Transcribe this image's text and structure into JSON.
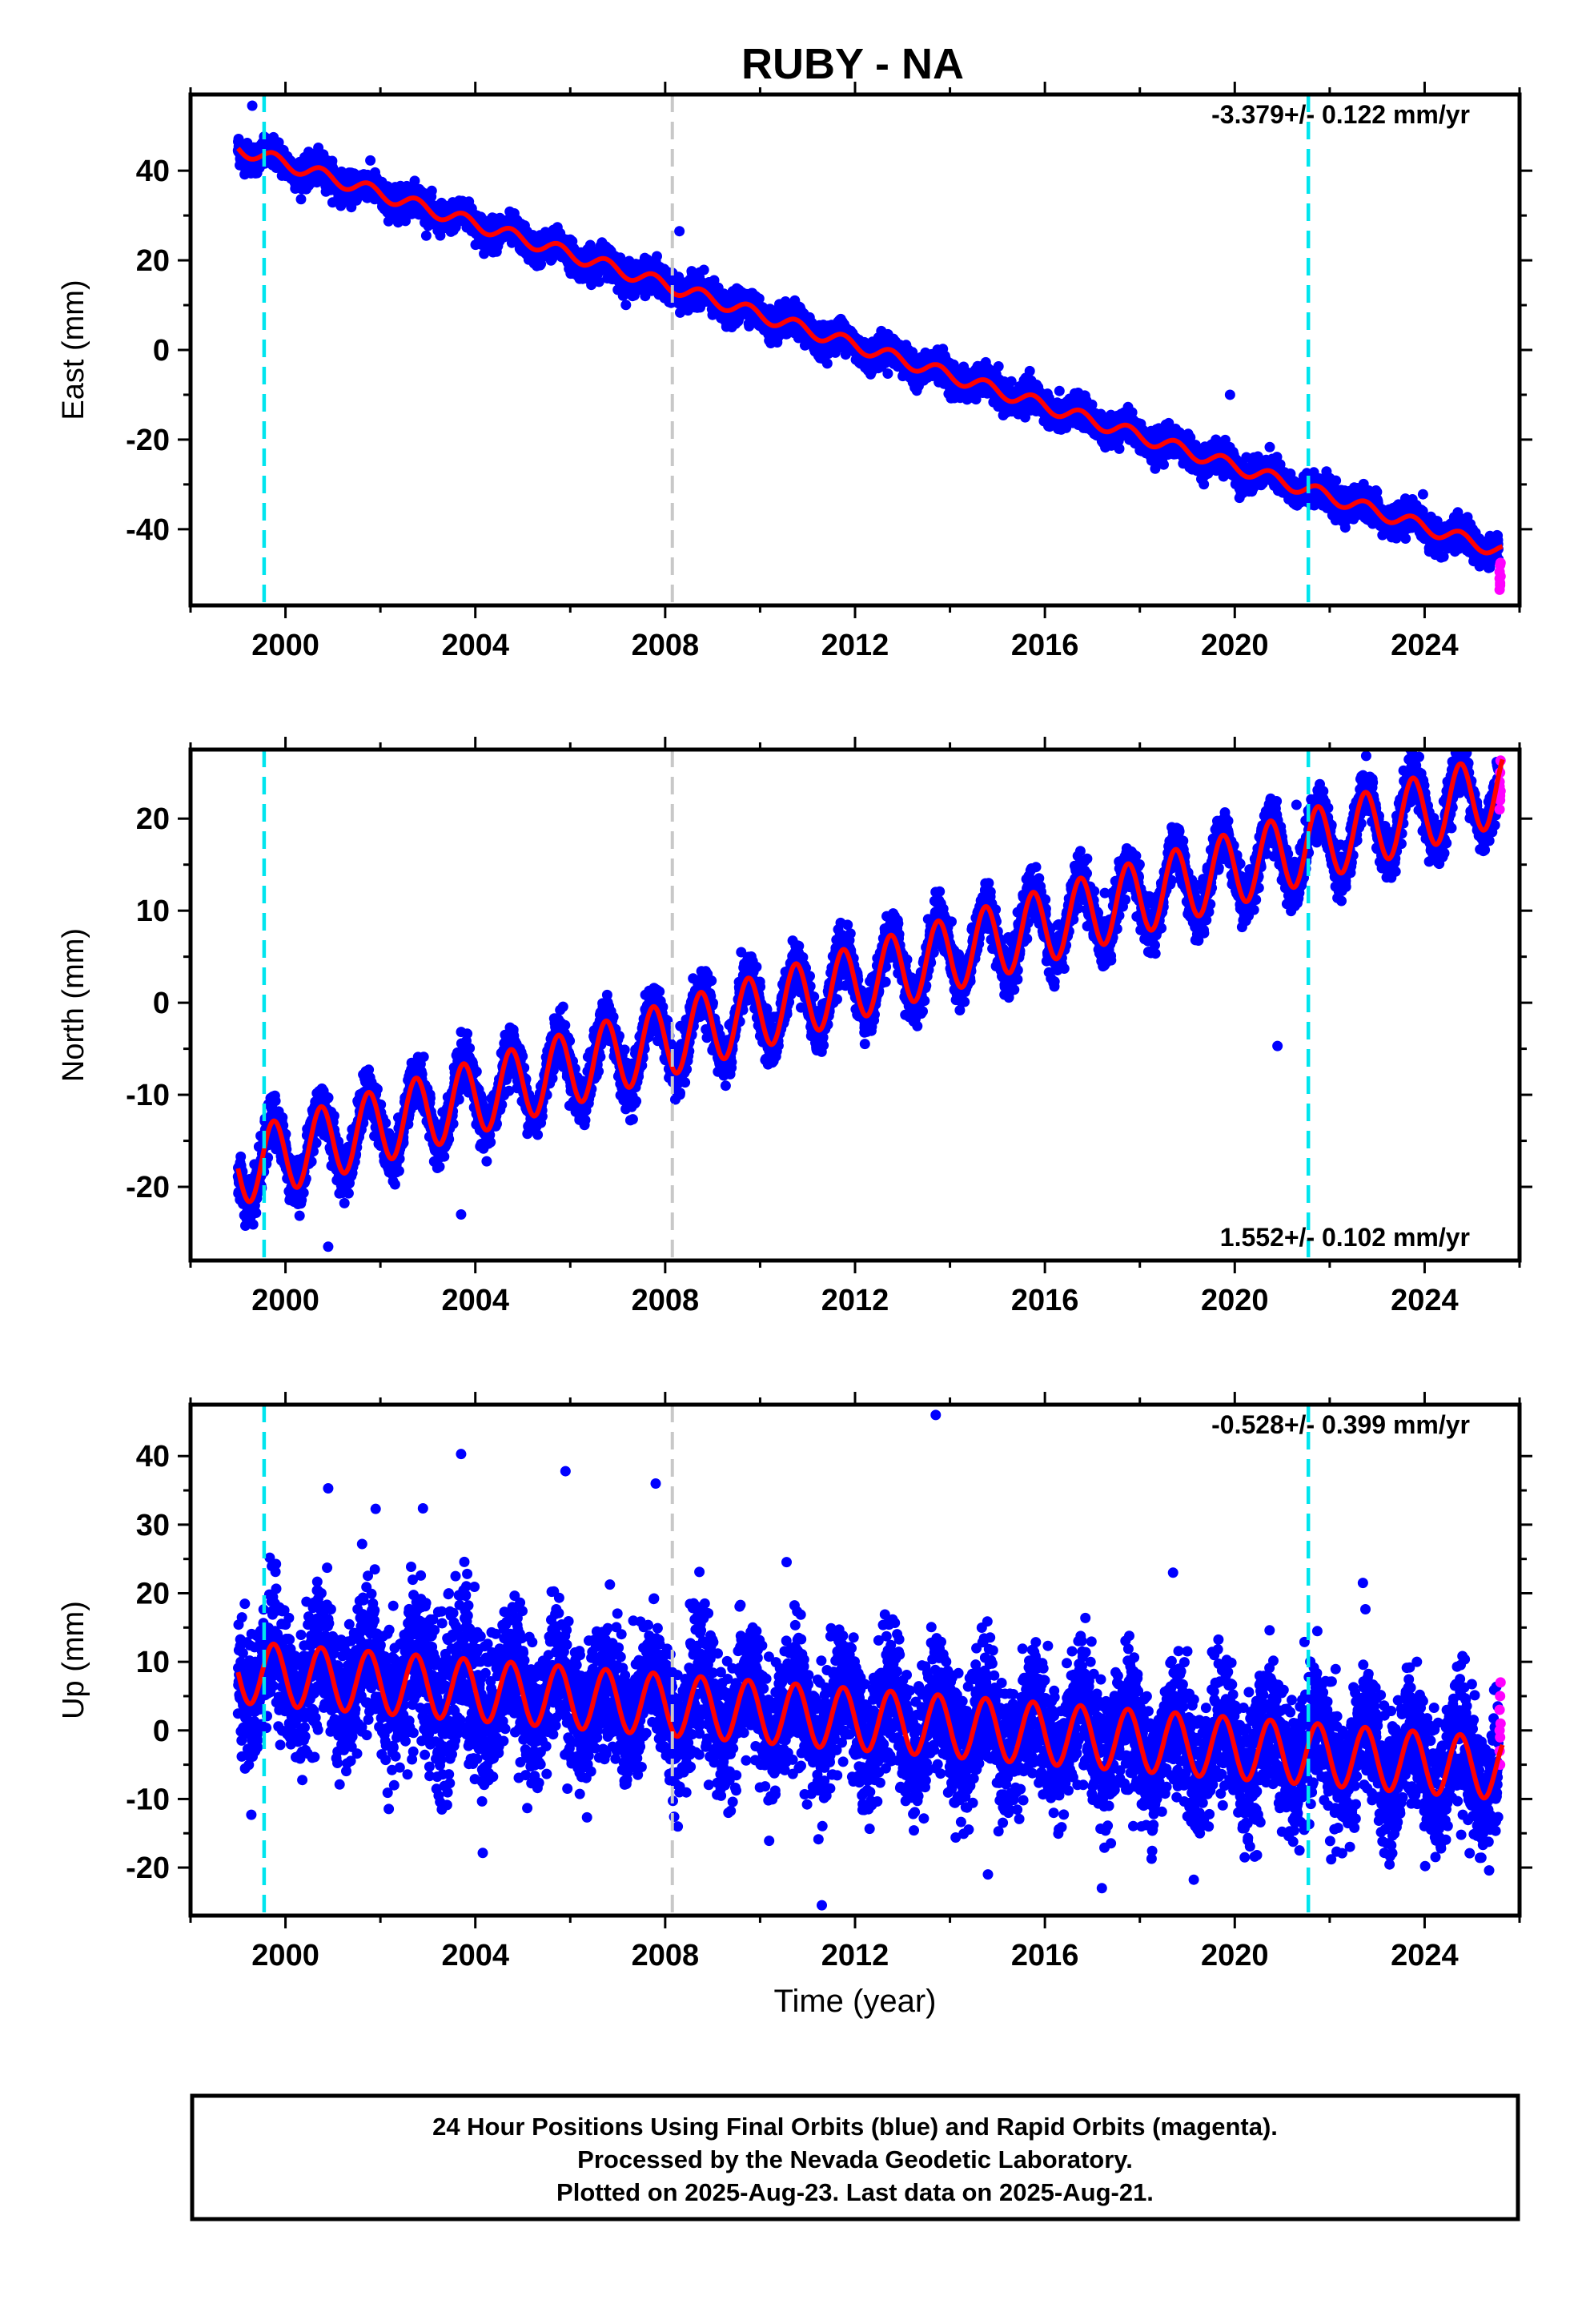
{
  "title": "RUBY - NA",
  "colors": {
    "final_orbits": "#0000ff",
    "rapid_orbits": "#ff00ff",
    "model_fit": "#ff0000",
    "event_cyan": "#00e5ee",
    "event_gray": "#c8c8c8",
    "frame": "#000000"
  },
  "footer": {
    "line1": "24 Hour Positions Using Final Orbits (blue) and Rapid Orbits (magenta).",
    "line2": "Processed by the Nevada Geodetic Laboratory.",
    "line3": "Plotted on 2025-Aug-23. Last data on 2025-Aug-21."
  },
  "chart_data": [
    {
      "type": "scatter",
      "panel": "east",
      "ylabel": "East (mm)",
      "xlabel": "",
      "rate_label": "-3.379+/- 0.122 mm/yr",
      "rate_position": "top-right",
      "xlim": [
        1998.0,
        2026.0
      ],
      "ylim": [
        -57,
        57
      ],
      "x_ticks": [
        "2000",
        "2004",
        "2008",
        "2012",
        "2016",
        "2020",
        "2024"
      ],
      "y_ticks": [
        "40",
        "20",
        "0",
        "-20",
        "-40"
      ],
      "y_tick_values": [
        40,
        20,
        0,
        -20,
        -40
      ],
      "event_lines": {
        "cyan": [
          1999.55,
          2021.55
        ],
        "gray": [
          2008.15
        ]
      },
      "data_range": [
        1999.0,
        2025.64
      ],
      "trend": {
        "y0": 45.0,
        "slope": -3.379,
        "t0": 1999.0
      },
      "seasonal": {
        "amplitude": 1.5,
        "phase": 0.5
      },
      "scatter_sigma": 1.6,
      "rapid_values": [
        -53.5,
        -52,
        -50.5,
        -49.5,
        -48,
        -47.5,
        -51,
        -52.5
      ],
      "outliers": [
        [
          1999.3,
          54.5
        ],
        [
          2008.3,
          26.5
        ],
        [
          2019.9,
          -10
        ],
        [
          2020.1,
          -33
        ]
      ],
      "grid": false
    },
    {
      "type": "scatter",
      "panel": "north",
      "ylabel": "North (mm)",
      "xlabel": "",
      "rate_label": "1.552+/- 0.102 mm/yr",
      "rate_position": "bottom-right",
      "xlim": [
        1998.0,
        2026.0
      ],
      "ylim": [
        -28,
        27.5
      ],
      "x_ticks": [
        "2000",
        "2004",
        "2008",
        "2012",
        "2016",
        "2020",
        "2024"
      ],
      "y_ticks": [
        "20",
        "10",
        "0",
        "-10",
        "-20"
      ],
      "y_tick_values": [
        20,
        10,
        0,
        -10,
        -20
      ],
      "event_lines": {
        "cyan": [
          1999.55,
          2021.55
        ],
        "gray": [
          2008.15
        ]
      },
      "data_range": [
        1999.0,
        2025.64
      ],
      "trend": {
        "y0": -18.0,
        "slope": 1.552,
        "t0": 1999.0
      },
      "seasonal": {
        "amplitude": 4.0,
        "phase": 0.5
      },
      "scatter_sigma": 1.3,
      "rapid_values": [
        21,
        22,
        23,
        24,
        25,
        26.3,
        23.5,
        22.5
      ],
      "outliers": [
        [
          2000.9,
          -26.5
        ],
        [
          2003.7,
          -23
        ],
        [
          2020.9,
          -4.7
        ],
        [
          2021.3,
          21.5
        ]
      ],
      "grid": false
    },
    {
      "type": "scatter",
      "panel": "up",
      "ylabel": "Up (mm)",
      "xlabel": "Time (year)",
      "rate_label": "-0.528+/- 0.399 mm/yr",
      "rate_position": "top-right",
      "xlim": [
        1998.0,
        2026.0
      ],
      "ylim": [
        -27,
        47.5
      ],
      "x_ticks": [
        "2000",
        "2004",
        "2008",
        "2012",
        "2016",
        "2020",
        "2024"
      ],
      "y_ticks": [
        "40",
        "30",
        "20",
        "10",
        "0",
        "-10",
        "-20"
      ],
      "y_tick_values": [
        40,
        30,
        20,
        10,
        0,
        -10,
        -20
      ],
      "event_lines": {
        "cyan": [
          1999.55,
          2021.55
        ],
        "gray": [
          2008.15
        ]
      },
      "data_range": [
        1999.0,
        2025.64
      ],
      "trend": {
        "y0": 8.5,
        "slope": -0.528,
        "t0": 1999.0
      },
      "seasonal": {
        "amplitude": 4.5,
        "phase": 0.5
      },
      "scatter_sigma": 4.8,
      "rapid_values": [
        -3,
        -1,
        1,
        3,
        5,
        7,
        0,
        -5
      ],
      "outliers": [
        [
          2013.7,
          46
        ],
        [
          2003.7,
          40.3
        ],
        [
          2005.9,
          37.8
        ],
        [
          2007.8,
          36
        ],
        [
          2011.3,
          -25.5
        ],
        [
          2017.2,
          -23
        ],
        [
          2014.8,
          -21
        ],
        [
          2000.9,
          35.3
        ],
        [
          2001.9,
          32.3
        ],
        [
          2018.7,
          23
        ],
        [
          2022.7,
          21.5
        ]
      ],
      "grid": false
    }
  ]
}
